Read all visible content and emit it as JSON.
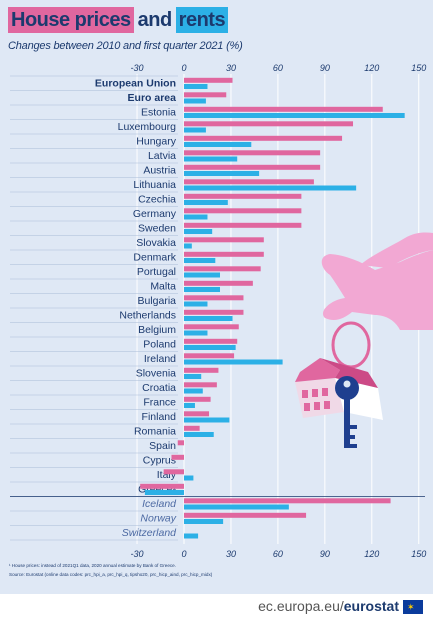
{
  "header": {
    "title_part1": "House prices",
    "title_part2": "and",
    "title_part3": "rents",
    "subtitle": "Changes between 2010 and first quarter 2021 (%)"
  },
  "colors": {
    "house_prices": "#e0679f",
    "rents": "#2cb0e6",
    "background": "#dfe8f5",
    "text": "#1c3a6e",
    "gridline": "#ffffff"
  },
  "chart_data": {
    "type": "bar",
    "orientation": "horizontal",
    "title": "House prices and rents",
    "subtitle": "Changes between 2010 and first quarter 2021 (%)",
    "xlabel": "",
    "ylabel": "",
    "xlim": [
      -30,
      150
    ],
    "xticks": [
      "-30",
      "0",
      "30",
      "60",
      "90",
      "120",
      "150"
    ],
    "grid": true,
    "legend": "none (colors identified in title)",
    "categories": [
      "European Union",
      "Euro area",
      "Estonia",
      "Luxembourg",
      "Hungary",
      "Latvia",
      "Austria",
      "Lithuania",
      "Czechia",
      "Germany",
      "Sweden",
      "Slovakia",
      "Denmark",
      "Portugal",
      "Malta",
      "Bulgaria",
      "Netherlands",
      "Belgium",
      "Poland",
      "Ireland",
      "Slovenia",
      "Croatia",
      "France",
      "Finland",
      "Romania",
      "Spain",
      "Cyprus",
      "Italy",
      "Greece¹",
      "Iceland",
      "Norway",
      "Switzerland"
    ],
    "category_styles": [
      "bold",
      "bold",
      "normal",
      "normal",
      "normal",
      "normal",
      "normal",
      "normal",
      "normal",
      "normal",
      "normal",
      "normal",
      "normal",
      "normal",
      "normal",
      "normal",
      "normal",
      "normal",
      "normal",
      "normal",
      "normal",
      "normal",
      "normal",
      "normal",
      "normal",
      "normal",
      "normal",
      "normal",
      "normal",
      "italic",
      "italic",
      "italic"
    ],
    "series": [
      {
        "name": "House prices",
        "values": [
          31,
          27,
          127,
          108,
          101,
          87,
          87,
          83,
          75,
          75,
          75,
          51,
          51,
          49,
          44,
          38,
          38,
          35,
          34,
          32,
          22,
          21,
          17,
          16,
          10,
          -4,
          -8,
          -13,
          -28,
          132,
          78,
          0
        ]
      },
      {
        "name": "Rents",
        "values": [
          15,
          14,
          141,
          14,
          43,
          34,
          48,
          110,
          28,
          15,
          18,
          5,
          20,
          23,
          23,
          15,
          31,
          15,
          33,
          63,
          11,
          12,
          7,
          29,
          19,
          0,
          0,
          6,
          -25,
          67,
          25,
          9
        ]
      }
    ]
  },
  "footnotes": {
    "note1": "¹ House prices: instead of 2021Q1 data, 2020 annual estimate by Bank of Greece.",
    "note2": "Source: Eurostat (online data codes: prc_hpi_a, prc_hpi_q, tipsho20, prc_hicp_aind, prc_hicp_midx)"
  },
  "footer": {
    "site": "ec.europa.eu/",
    "brand": "eurostat"
  }
}
